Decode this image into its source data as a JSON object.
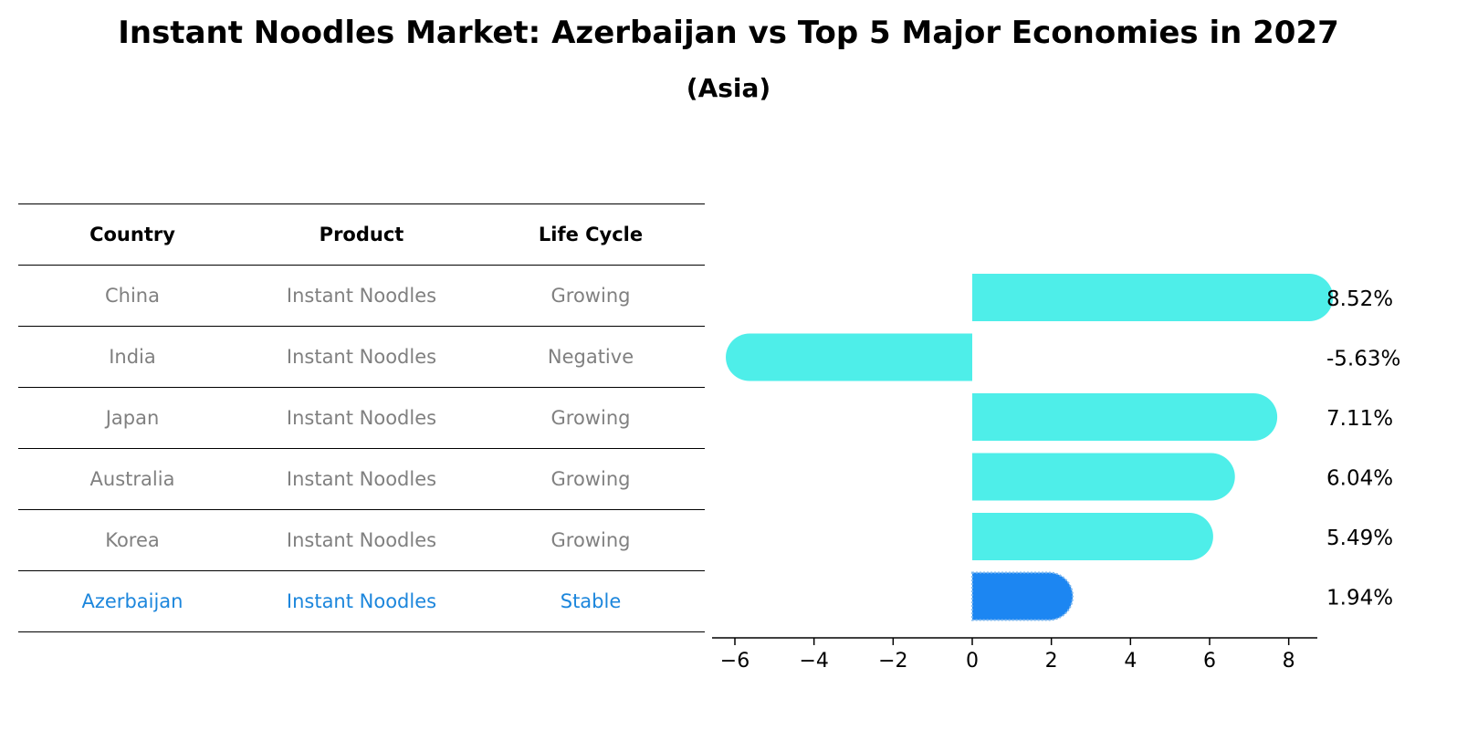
{
  "title": "Instant Noodles Market: Azerbaijan vs Top 5 Major Economies in 2027",
  "subtitle": "(Asia)",
  "table": {
    "headers": [
      "Country",
      "Product",
      "Life Cycle"
    ],
    "rows": [
      {
        "country": "China",
        "product": "Instant Noodles",
        "life_cycle": "Growing"
      },
      {
        "country": "India",
        "product": "Instant Noodles",
        "life_cycle": "Negative"
      },
      {
        "country": "Japan",
        "product": "Instant Noodles",
        "life_cycle": "Growing"
      },
      {
        "country": "Australia",
        "product": "Instant Noodles",
        "life_cycle": "Growing"
      },
      {
        "country": "Korea",
        "product": "Instant Noodles",
        "life_cycle": "Growing"
      },
      {
        "country": "Azerbaijan",
        "product": "Instant Noodles",
        "life_cycle": "Stable"
      }
    ]
  },
  "colors": {
    "bar": "#4eeee9",
    "highlight": "#1c86f2",
    "muted_text": "#808080",
    "highlight_text": "#1c86dc"
  },
  "chart_data": {
    "type": "bar",
    "orientation": "horizontal",
    "categories": [
      "China",
      "India",
      "Japan",
      "Australia",
      "Korea",
      "Azerbaijan"
    ],
    "values": [
      8.52,
      -5.63,
      7.11,
      6.04,
      5.49,
      1.94
    ],
    "value_labels": [
      "8.52%",
      "-5.63%",
      "7.11%",
      "6.04%",
      "5.49%",
      "1.94%"
    ],
    "highlight_category": "Azerbaijan",
    "xlim": [
      -6.3,
      9.3
    ],
    "xticks": [
      -6,
      -4,
      -2,
      0,
      2,
      4,
      6,
      8
    ],
    "xtick_labels": [
      "−6",
      "−4",
      "−2",
      "0",
      "2",
      "4",
      "6",
      "8"
    ],
    "grid": false
  }
}
